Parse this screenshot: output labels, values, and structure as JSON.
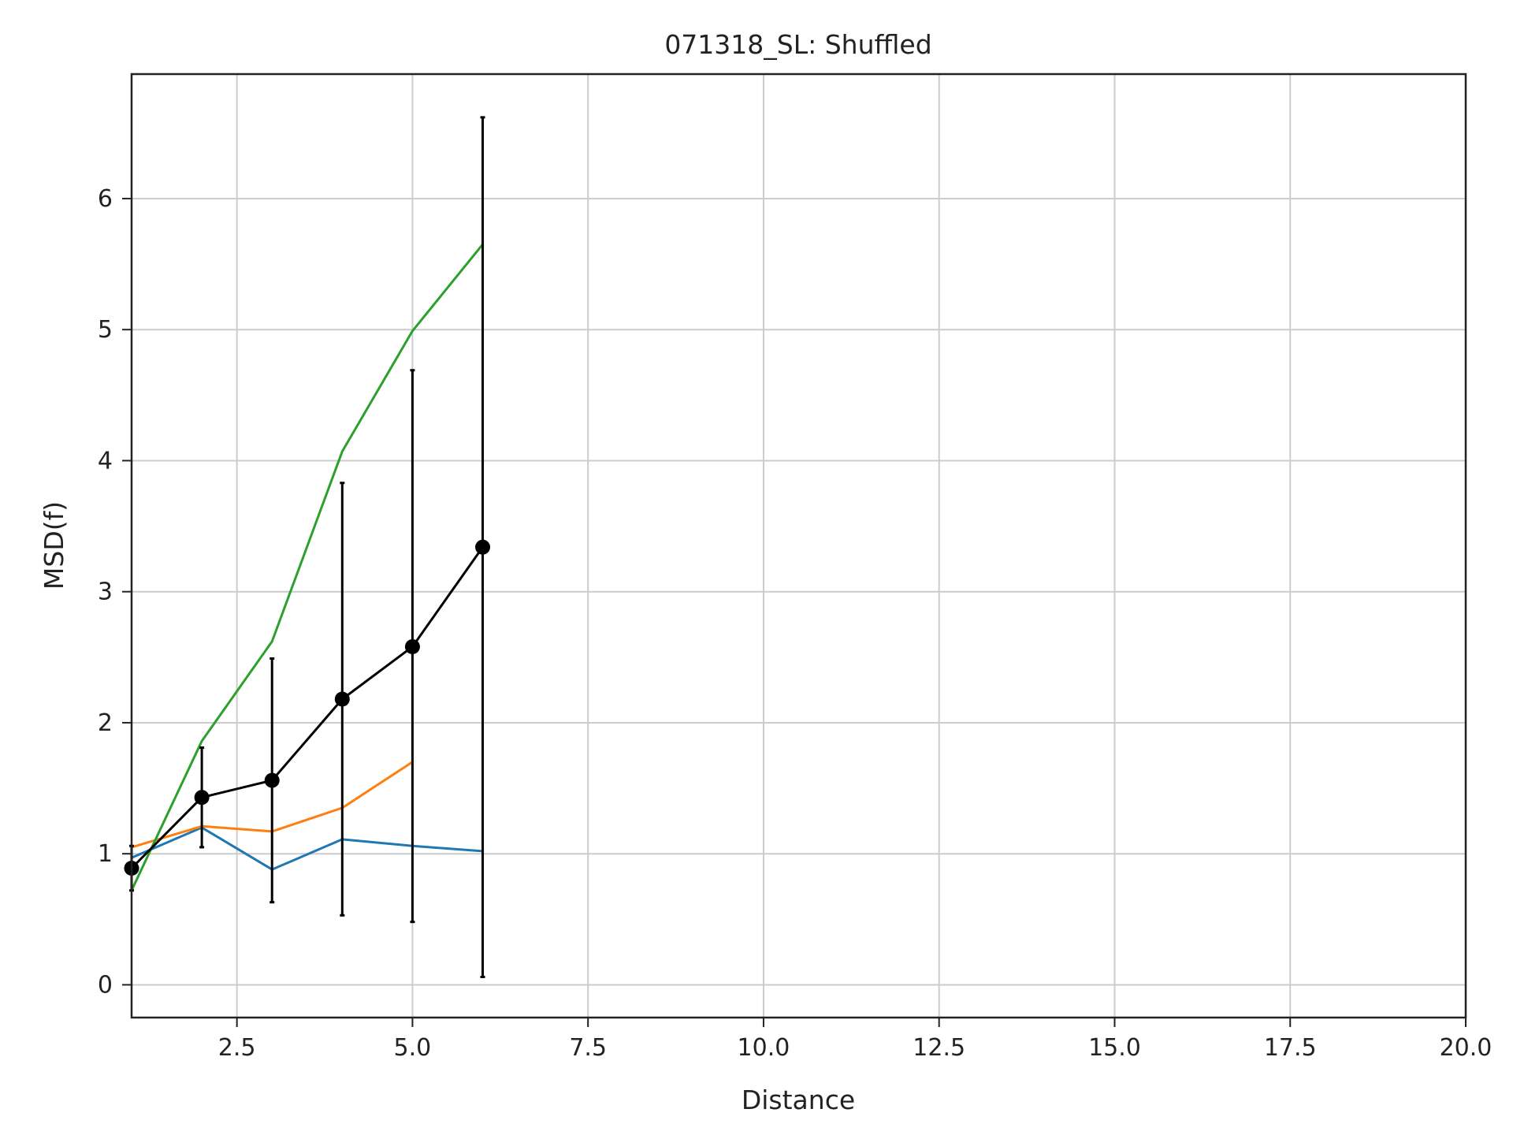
{
  "chart_data": {
    "type": "line",
    "title": "071318_SL: Shuffled",
    "xlabel": "Distance",
    "ylabel": "MSD(f)",
    "xlim": [
      1,
      20
    ],
    "ylim": [
      -0.25,
      6.95
    ],
    "xticks": [
      2.5,
      5.0,
      7.5,
      10.0,
      12.5,
      15.0,
      17.5,
      20.0
    ],
    "xtick_labels": [
      "2.5",
      "5.0",
      "7.5",
      "10.0",
      "12.5",
      "15.0",
      "17.5",
      "20.0"
    ],
    "yticks": [
      0,
      1,
      2,
      3,
      4,
      5,
      6
    ],
    "ytick_labels": [
      "0",
      "1",
      "2",
      "3",
      "4",
      "5",
      "6"
    ],
    "grid": true,
    "legend": "none",
    "series": [
      {
        "color": "#1f77b4",
        "x": [
          1,
          2,
          3,
          4,
          5,
          6
        ],
        "y": [
          0.97,
          1.2,
          0.88,
          1.11,
          1.06,
          1.02
        ]
      },
      {
        "color": "#ff7f0e",
        "x": [
          1,
          2,
          3,
          4,
          5
        ],
        "y": [
          1.05,
          1.21,
          1.17,
          1.35,
          1.7
        ]
      },
      {
        "color": "#2ca02c",
        "x": [
          1,
          2,
          3,
          4,
          5,
          6
        ],
        "y": [
          0.72,
          1.86,
          2.62,
          4.07,
          4.99,
          5.65
        ]
      },
      {
        "color": "#000000",
        "markers": true,
        "x": [
          1,
          2,
          3,
          4,
          5,
          6
        ],
        "y": [
          0.89,
          1.43,
          1.56,
          2.18,
          2.58,
          3.34
        ],
        "err_low": [
          0.72,
          1.05,
          0.63,
          0.53,
          0.48,
          0.06
        ],
        "err_high": [
          1.06,
          1.81,
          2.49,
          3.83,
          4.69,
          6.62
        ]
      }
    ]
  }
}
